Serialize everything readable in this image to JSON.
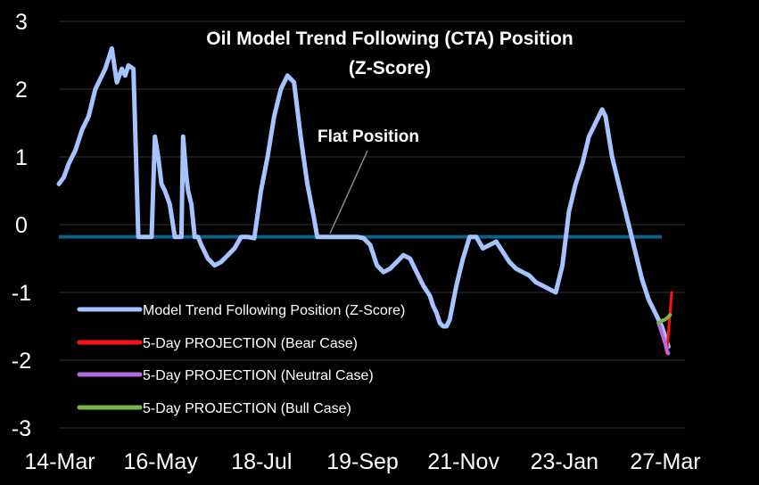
{
  "chart_data": {
    "type": "line",
    "title_lines": [
      "Oil Model Trend Following (CTA) Position",
      "(Z-Score)"
    ],
    "x_ticks": [
      "14-Mar",
      "16-May",
      "18-Jul",
      "19-Sep",
      "21-Nov",
      "23-Jan",
      "27-Mar"
    ],
    "y_ticks": [
      "3",
      "2",
      "1",
      "0",
      "-1",
      "-2",
      "-3"
    ],
    "ylim": [
      -3,
      3
    ],
    "xlim": [
      0,
      378
    ],
    "grid": "horizontal",
    "annotation": {
      "text": "Flat Position",
      "y": -0.18
    },
    "flat_position": -0.18,
    "series": [
      {
        "name": "Model Trend Following Position (Z-Score)",
        "color": "#a4c3ff",
        "x": [
          0,
          3,
          6,
          10,
          14,
          18,
          22,
          28,
          32,
          35,
          38,
          40,
          42,
          45,
          48,
          52,
          56,
          58,
          60,
          62,
          64,
          67,
          70,
          72,
          74,
          75,
          76,
          77,
          78,
          80,
          82,
          84,
          86,
          90,
          94,
          98,
          102,
          106,
          110,
          114,
          118,
          122,
          126,
          130,
          134,
          138,
          142,
          146,
          150,
          154,
          156,
          158,
          160,
          162,
          165,
          168,
          172,
          176,
          180,
          184,
          188,
          192,
          196,
          200,
          204,
          208,
          212,
          216,
          220,
          224,
          226,
          228,
          230,
          232,
          234,
          236,
          240,
          244,
          248,
          252,
          256,
          260,
          264,
          268,
          272,
          276,
          280,
          284,
          288,
          292,
          296,
          300,
          304,
          308,
          312,
          316,
          320,
          324,
          328,
          330,
          332,
          334,
          336,
          340,
          344,
          348,
          352,
          356,
          360,
          364,
          368
        ],
        "y": [
          0.6,
          0.7,
          0.9,
          1.1,
          1.4,
          1.6,
          2.0,
          2.3,
          2.6,
          2.1,
          2.3,
          2.2,
          2.35,
          2.3,
          -0.18,
          -0.18,
          -0.18,
          1.3,
          1.0,
          0.6,
          0.5,
          0.3,
          -0.18,
          -0.18,
          -0.18,
          1.3,
          1.0,
          0.7,
          0.5,
          0.3,
          -0.18,
          -0.18,
          -0.3,
          -0.5,
          -0.6,
          -0.55,
          -0.45,
          -0.35,
          -0.18,
          -0.18,
          -0.2,
          0.5,
          1.0,
          1.6,
          2.0,
          2.2,
          2.1,
          1.3,
          0.6,
          0.1,
          -0.18,
          -0.18,
          -0.18,
          -0.18,
          -0.18,
          -0.18,
          -0.18,
          -0.18,
          -0.18,
          -0.2,
          -0.3,
          -0.6,
          -0.7,
          -0.65,
          -0.55,
          -0.45,
          -0.5,
          -0.7,
          -0.9,
          -1.05,
          -1.2,
          -1.3,
          -1.45,
          -1.5,
          -1.5,
          -1.4,
          -0.9,
          -0.5,
          -0.18,
          -0.18,
          -0.35,
          -0.3,
          -0.25,
          -0.4,
          -0.55,
          -0.65,
          -0.7,
          -0.75,
          -0.85,
          -0.9,
          -0.95,
          -1.0,
          -0.6,
          0.2,
          0.6,
          0.9,
          1.3,
          1.5,
          1.7,
          1.6,
          1.3,
          1.0,
          0.8,
          0.4,
          0.0,
          -0.4,
          -0.8,
          -1.1,
          -1.3,
          -1.5,
          -1.8
        ],
        "stroke_width": 5
      },
      {
        "name": "5-Day PROJECTION (Bear Case)",
        "color": "#ff1111",
        "x": [
          362,
          364,
          366,
          367,
          368,
          369,
          370
        ],
        "y": [
          -1.45,
          -1.6,
          -1.75,
          -1.9,
          -1.6,
          -1.3,
          -1.0
        ],
        "stroke_width": 3
      },
      {
        "name": "5-Day PROJECTION (Neutral Case)",
        "color": "#b469e0",
        "x": [
          362,
          364,
          366,
          367,
          368
        ],
        "y": [
          -1.45,
          -1.6,
          -1.75,
          -1.85,
          -1.9
        ],
        "stroke_width": 4
      },
      {
        "name": "5-Day PROJECTION (Bull Case)",
        "color": "#7ab648",
        "x": [
          362,
          364,
          366,
          368,
          369
        ],
        "y": [
          -1.45,
          -1.42,
          -1.4,
          -1.36,
          -1.33
        ],
        "stroke_width": 4
      }
    ]
  }
}
